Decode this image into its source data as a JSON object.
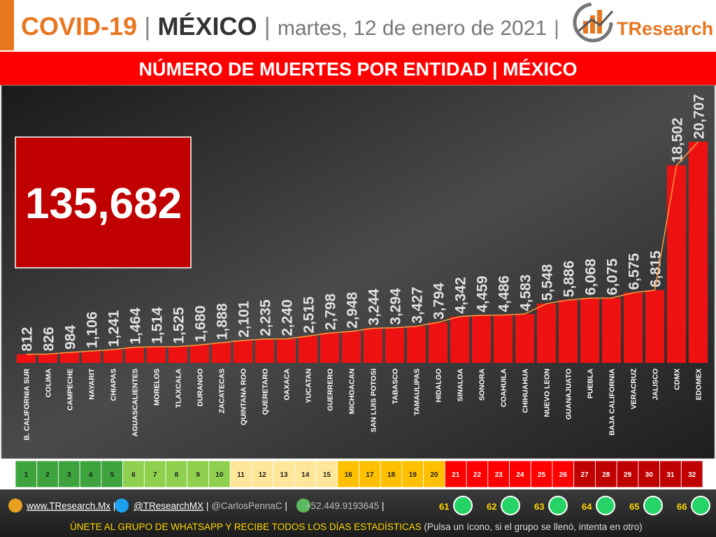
{
  "header": {
    "parts": [
      "COVID-19",
      "|",
      "MÉXICO",
      "|",
      "martes, 12 de enero de 2021",
      "|"
    ],
    "logo": "TResearch"
  },
  "chart_data": {
    "type": "bar",
    "title": "NÚMERO DE MUERTES POR ENTIDAD | MÉXICO",
    "annotations": [
      "135,682"
    ],
    "categories": [
      "B. CALIFORNIA SUR",
      "COLIMA",
      "CAMPECHE",
      "NAYARIT",
      "CHIAPAS",
      "AGUASCALIENTES",
      "MORELOS",
      "TLAXCALA",
      "DURANGO",
      "ZACATECAS",
      "QUINTANA ROO",
      "QUERETARO",
      "OAXACA",
      "YUCATAN",
      "GUERRERO",
      "MICHOACAN",
      "SAN LUIS POTOSI",
      "TABASCO",
      "TAMAULIPAS",
      "HIDALGO",
      "SINALOA",
      "SONORA",
      "COAHUILA",
      "CHIHUAHUA",
      "NUEVO LEON",
      "GUANAJUATO",
      "PUEBLA",
      "BAJA CALIFORNIA",
      "VERACRUZ",
      "JALISCO",
      "CDMX",
      "EDOMEX"
    ],
    "values": [
      812,
      826,
      984,
      1106,
      1241,
      1464,
      1514,
      1525,
      1680,
      1888,
      2101,
      2235,
      2240,
      2515,
      2798,
      2948,
      3244,
      3294,
      3427,
      3794,
      4342,
      4459,
      4486,
      4583,
      5548,
      5886,
      6068,
      6075,
      6575,
      6815,
      18502,
      20707
    ],
    "value_labels": [
      "812",
      "826",
      "984",
      "1,106",
      "1,241",
      "1,464",
      "1,514",
      "1,525",
      "1,680",
      "1,888",
      "2,101",
      "2,235",
      "2,240",
      "2,515",
      "2,798",
      "2,948",
      "3,244",
      "3,294",
      "3,427",
      "3,794",
      "4,342",
      "4,459",
      "4,486",
      "4,583",
      "5,548",
      "5,886",
      "6,068",
      "6,075",
      "6,575",
      "6,815",
      "18,502",
      "20,707"
    ],
    "color": "#ee1111",
    "trend_color": "#ff9a3c",
    "ylim": [
      0,
      26000
    ],
    "ranks": [
      1,
      2,
      3,
      4,
      5,
      6,
      7,
      8,
      9,
      10,
      11,
      12,
      13,
      14,
      15,
      16,
      17,
      18,
      19,
      20,
      21,
      22,
      23,
      24,
      25,
      26,
      27,
      28,
      29,
      30,
      31,
      32
    ],
    "rank_colors": [
      "#3da33d",
      "#3da33d",
      "#3da33d",
      "#3da33d",
      "#3da33d",
      "#8fd14f",
      "#8fd14f",
      "#8fd14f",
      "#8fd14f",
      "#8fd14f",
      "#ffe699",
      "#ffe699",
      "#ffe699",
      "#ffe699",
      "#ffe699",
      "#ffc000",
      "#ffc000",
      "#ffc000",
      "#ffc000",
      "#ffc000",
      "#ff0000",
      "#ff0000",
      "#ff0000",
      "#ff0000",
      "#ff0000",
      "#ff0000",
      "#c00000",
      "#c00000",
      "#c00000",
      "#c00000",
      "#c00000",
      "#c00000"
    ]
  },
  "footer": {
    "contacts": [
      "www.TResearch.Mx",
      "|",
      "@TResearchMX",
      "|",
      "@CarlosPennaC",
      "|",
      "+52.449.9193645",
      "|"
    ],
    "groups": [
      "61",
      "62",
      "63",
      "64",
      "65",
      "66"
    ],
    "call": "ÚNETE AL GRUPO DE WHATSAPP Y RECIBE TODOS LOS DÍAS ESTADÍSTICAS",
    "note": "(Pulsa un ícono, si el grupo se llenó, intenta en otro)"
  }
}
